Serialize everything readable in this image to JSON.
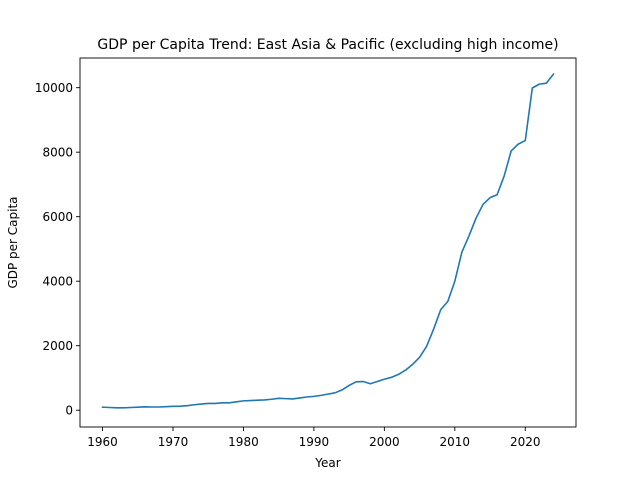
{
  "chart_data": {
    "type": "line",
    "title": "GDP per Capita Trend: East Asia & Pacific (excluding high income)",
    "xlabel": "Year",
    "ylabel": "GDP per Capita",
    "xlim": [
      1956.8,
      2027.2
    ],
    "ylim": [
      -520,
      10920
    ],
    "xticks": [
      1960,
      1970,
      1980,
      1990,
      2000,
      2010,
      2020
    ],
    "yticks": [
      0,
      2000,
      4000,
      6000,
      8000,
      10000
    ],
    "grid": false,
    "legend": "none",
    "line_color": "#1f77b4",
    "series": [
      {
        "x": [
          1960,
          1961,
          1962,
          1963,
          1964,
          1965,
          1966,
          1967,
          1968,
          1969,
          1970,
          1971,
          1972,
          1973,
          1974,
          1975,
          1976,
          1977,
          1978,
          1979,
          1980,
          1981,
          1982,
          1983,
          1984,
          1985,
          1986,
          1987,
          1988,
          1989,
          1990,
          1991,
          1992,
          1993,
          1994,
          1995,
          1996,
          1997,
          1998,
          1999,
          2000,
          2001,
          2002,
          2003,
          2004,
          2005,
          2006,
          2007,
          2008,
          2009,
          2010,
          2011,
          2012,
          2013,
          2014,
          2015,
          2016,
          2017,
          2018,
          2019,
          2020,
          2021,
          2022,
          2023,
          2024
        ],
        "values": [
          95,
          85,
          75,
          75,
          85,
          95,
          105,
          100,
          100,
          110,
          120,
          125,
          140,
          170,
          190,
          210,
          210,
          230,
          230,
          260,
          290,
          300,
          310,
          320,
          340,
          370,
          360,
          350,
          380,
          410,
          430,
          460,
          500,
          540,
          630,
          770,
          880,
          890,
          820,
          890,
          960,
          1020,
          1110,
          1240,
          1420,
          1640,
          1980,
          2520,
          3120,
          3370,
          4000,
          4900,
          5400,
          5950,
          6380,
          6590,
          6680,
          7260,
          8040,
          8250,
          8360,
          9990,
          10110,
          10140,
          10420
        ]
      }
    ]
  }
}
